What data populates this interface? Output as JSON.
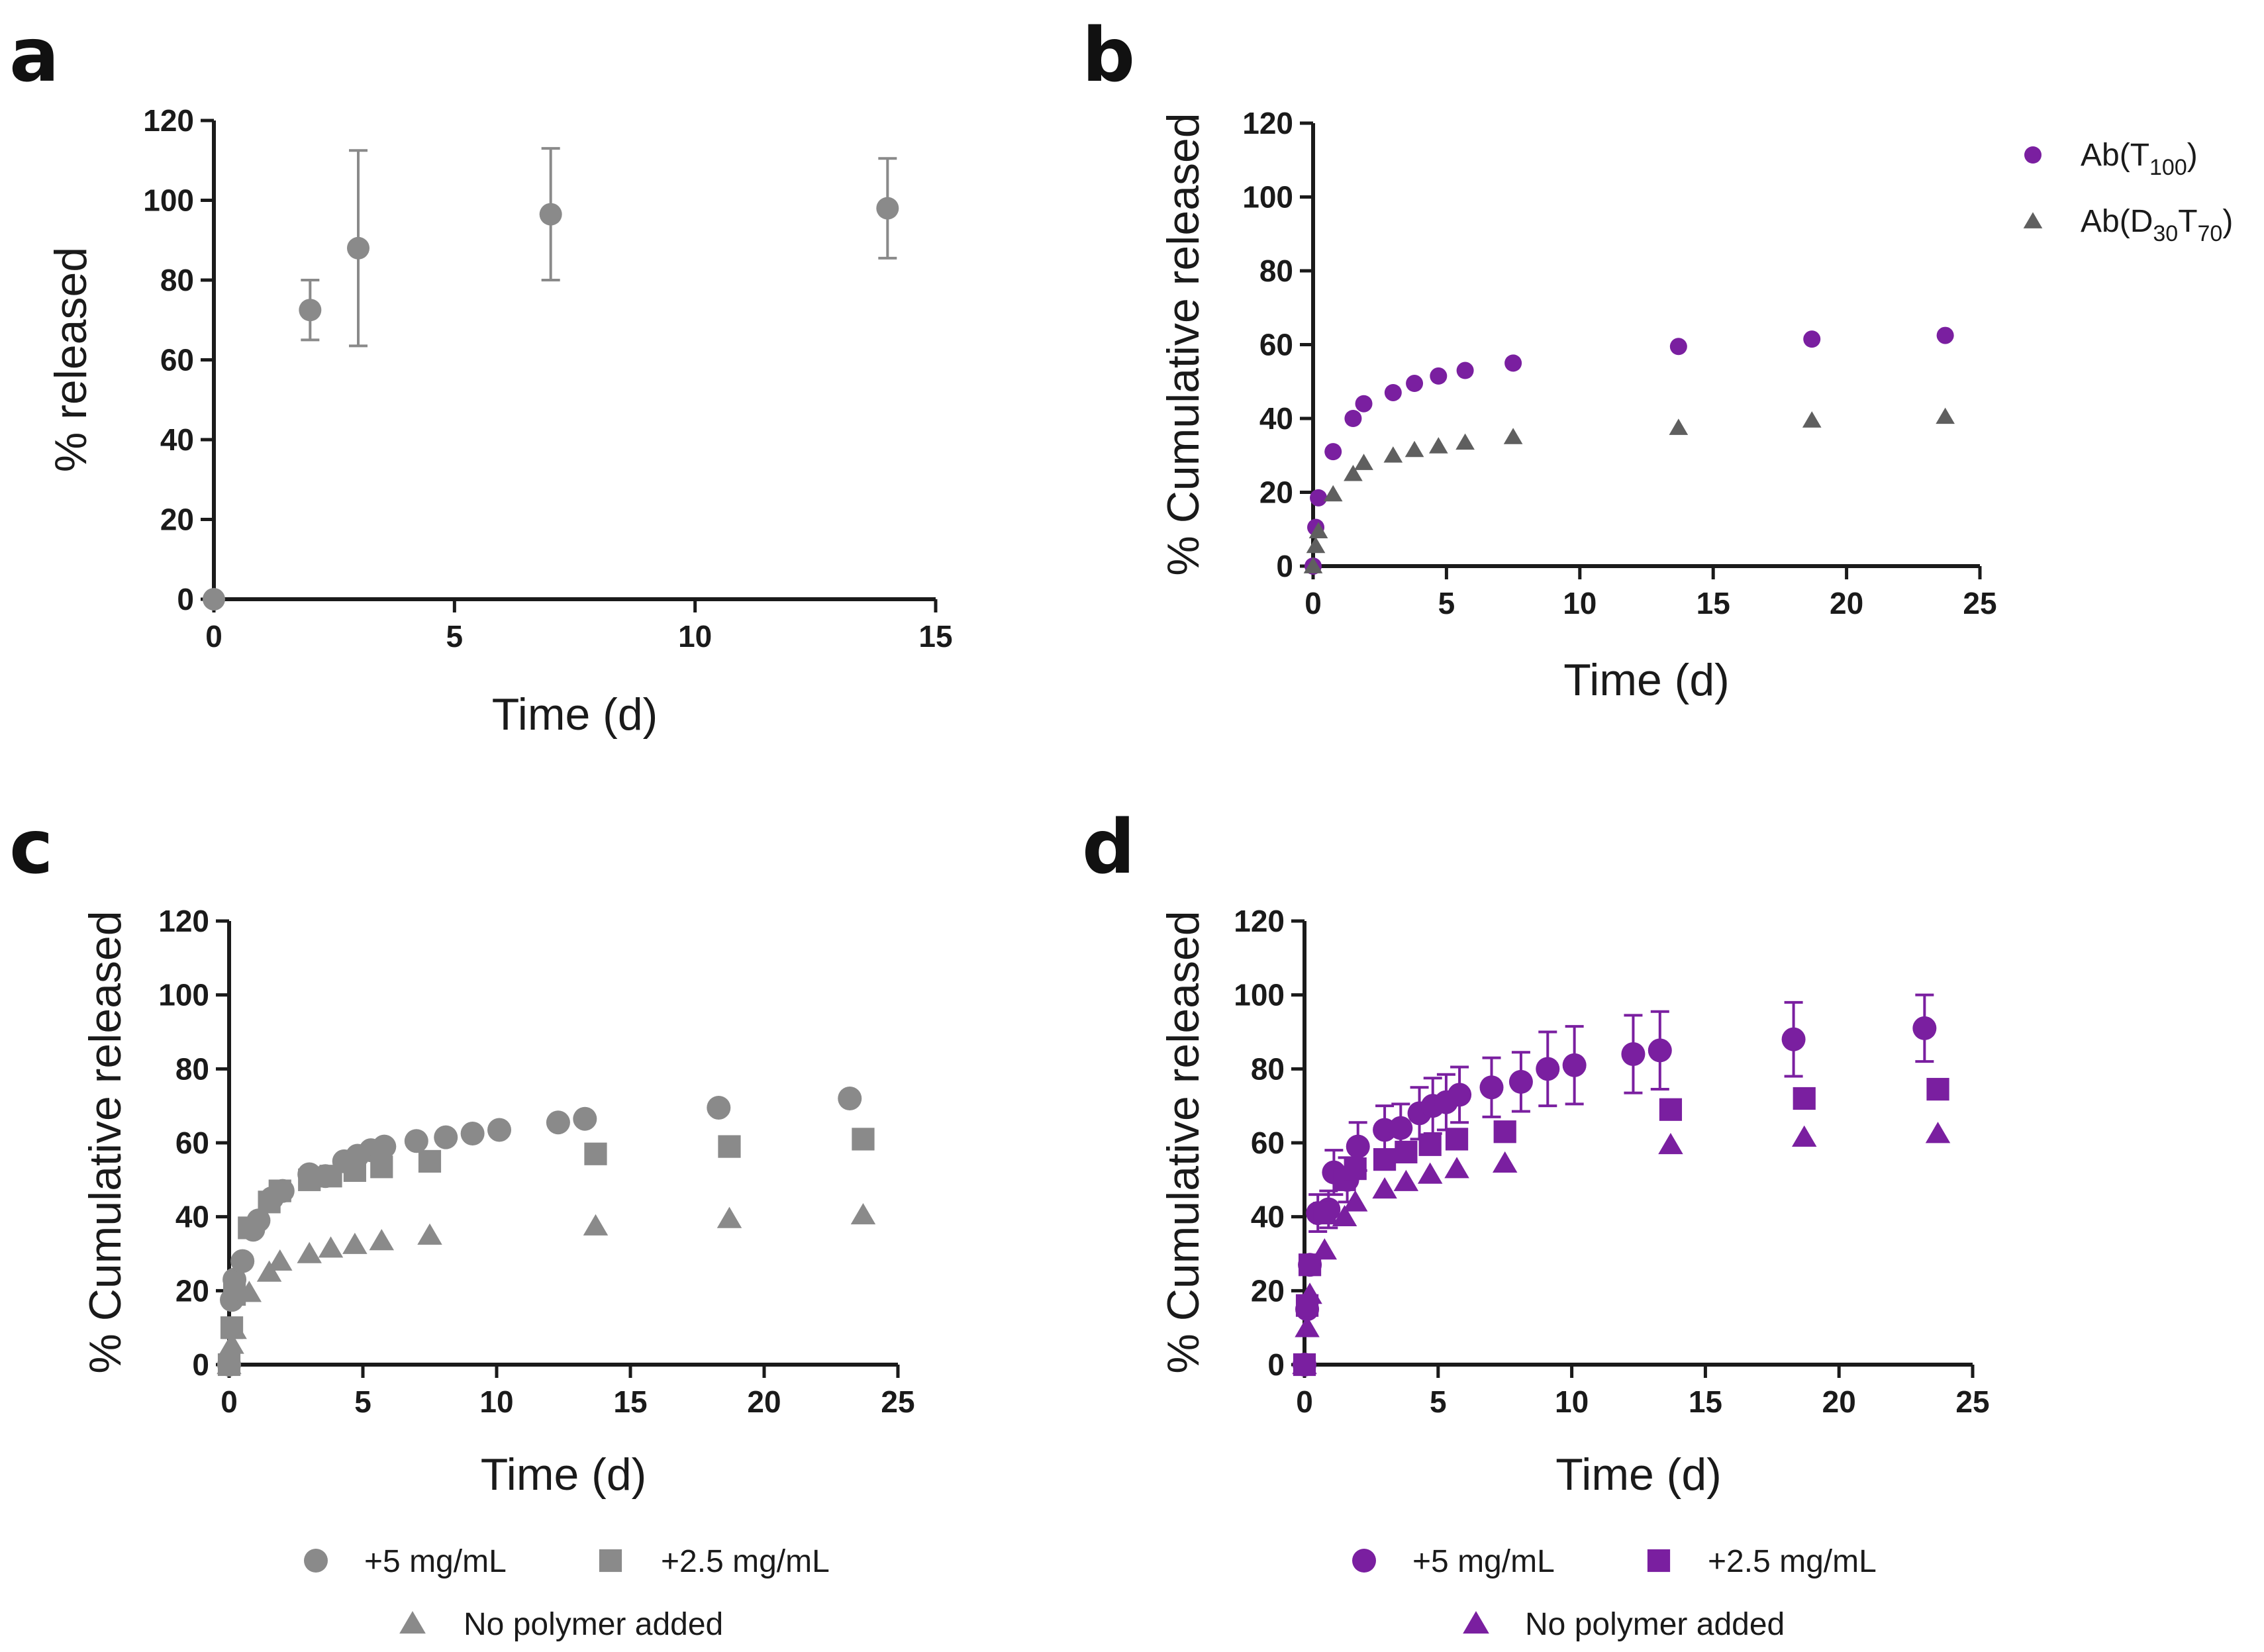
{
  "colors": {
    "gray": "#8a8a8a",
    "dark_gray": "#5f5f5f",
    "purple": "#7a1fa0"
  },
  "chart_data": [
    {
      "panel": "a",
      "type": "scatter",
      "xlabel": "Time (d)",
      "ylabel": "% released",
      "xlim": [
        0,
        15
      ],
      "ylim": [
        0,
        120
      ],
      "xticks": [
        0,
        5,
        10,
        15
      ],
      "yticks": [
        0,
        20,
        40,
        60,
        80,
        100,
        120
      ],
      "legend": "none",
      "series": [
        {
          "name": "released",
          "marker": "circle",
          "color": "#8a8a8a",
          "x": [
            0,
            2,
            3,
            7,
            14
          ],
          "y": [
            0,
            72.5,
            88,
            96.5,
            98
          ],
          "err": [
            0,
            7.5,
            24.5,
            16.5,
            12.5
          ]
        }
      ]
    },
    {
      "panel": "b",
      "type": "scatter",
      "xlabel": "Time (d)",
      "ylabel": "% Cumulative released",
      "xlim": [
        0,
        25
      ],
      "ylim": [
        0,
        120
      ],
      "xticks": [
        0,
        5,
        10,
        15,
        20,
        25
      ],
      "yticks": [
        0,
        20,
        40,
        60,
        80,
        100,
        120
      ],
      "legend": "top-right outside",
      "series": [
        {
          "name": "Ab(T100)",
          "label_base": "Ab(T",
          "label_sub": "100",
          "label_end": ")",
          "marker": "circle",
          "color": "#7a1fa0",
          "x": [
            0,
            0.1,
            0.2,
            0.75,
            1.5,
            1.9,
            3,
            3.8,
            4.7,
            5.7,
            7.5,
            13.7,
            18.7,
            23.7
          ],
          "y": [
            0,
            10.5,
            18.5,
            31,
            40,
            44,
            47,
            49.5,
            51.5,
            53,
            55,
            59.5,
            61.5,
            62.5
          ]
        },
        {
          "name": "Ab(D30T70)",
          "label_base": "Ab(D",
          "label_sub": "30",
          "label_mid": "T",
          "label_sub2": "70",
          "label_end": ")",
          "marker": "triangle",
          "color": "#5f5f5f",
          "x": [
            0,
            0.1,
            0.2,
            0.75,
            1.5,
            1.9,
            3,
            3.8,
            4.7,
            5.7,
            7.5,
            13.7,
            18.7,
            23.7
          ],
          "y": [
            0,
            5.5,
            9.5,
            19.5,
            25,
            28,
            30,
            31.5,
            32.5,
            33.5,
            35,
            37.5,
            39.5,
            40.5
          ]
        }
      ]
    },
    {
      "panel": "c",
      "type": "scatter",
      "xlabel": "Time (d)",
      "ylabel": "% Cumulative released",
      "xlim": [
        0,
        25
      ],
      "ylim": [
        0,
        120
      ],
      "xticks": [
        0,
        5,
        10,
        15,
        20,
        25
      ],
      "yticks": [
        0,
        20,
        40,
        60,
        80,
        100,
        120
      ],
      "legend": "bottom",
      "series": [
        {
          "name": "+5 mg/mL",
          "marker": "circle",
          "color": "#8a8a8a",
          "x": [
            0,
            0.1,
            0.2,
            0.5,
            0.9,
            1.1,
            1.6,
            2,
            3,
            3.6,
            4.3,
            4.8,
            5.3,
            5.8,
            7,
            8.1,
            9.1,
            10.1,
            12.3,
            13.3,
            18.3,
            23.2
          ],
          "y": [
            0,
            17.5,
            23,
            28,
            36.5,
            39,
            45,
            47,
            51.5,
            51,
            55,
            56.5,
            58,
            59,
            60.5,
            61.5,
            62.5,
            63.5,
            65.5,
            66.5,
            69.5,
            72
          ]
        },
        {
          "name": "+2.5 mg/mL",
          "marker": "square",
          "color": "#8a8a8a",
          "x": [
            0,
            0.1,
            0.2,
            0.75,
            1.5,
            1.9,
            3,
            3.8,
            4.7,
            5.7,
            7.5,
            13.7,
            18.7,
            23.7
          ],
          "y": [
            0,
            10,
            19,
            37,
            44,
            47,
            50,
            51,
            52.5,
            53.5,
            55,
            57,
            59,
            61
          ]
        },
        {
          "name": "No polymer added",
          "marker": "triangle",
          "color": "#8a8a8a",
          "x": [
            0,
            0.1,
            0.2,
            0.75,
            1.5,
            1.9,
            3,
            3.8,
            4.7,
            5.7,
            7.5,
            13.7,
            18.7,
            23.7
          ],
          "y": [
            0,
            5.5,
            9.5,
            19.5,
            25,
            28,
            30,
            31.5,
            32.5,
            33.5,
            35,
            37.5,
            39.5,
            40.5
          ]
        }
      ]
    },
    {
      "panel": "d",
      "type": "scatter",
      "xlabel": "Time (d)",
      "ylabel": "% Cumulative released",
      "xlim": [
        0,
        25
      ],
      "ylim": [
        0,
        120
      ],
      "xticks": [
        0,
        5,
        10,
        15,
        20,
        25
      ],
      "yticks": [
        0,
        20,
        40,
        60,
        80,
        100,
        120
      ],
      "legend": "bottom",
      "series": [
        {
          "name": "+5 mg/mL",
          "marker": "circle",
          "color": "#7a1fa0",
          "x": [
            0,
            0.1,
            0.2,
            0.5,
            0.9,
            1.1,
            1.6,
            2,
            3,
            3.6,
            4.3,
            4.8,
            5.3,
            5.8,
            7,
            8.1,
            9.1,
            10.1,
            12.3,
            13.3,
            18.3,
            23.2
          ],
          "y": [
            0,
            15,
            27,
            41,
            42,
            52,
            50,
            59,
            63.5,
            64,
            68,
            70,
            71,
            73,
            75,
            76.5,
            80,
            81,
            84,
            85,
            88,
            91
          ],
          "err": [
            0,
            0,
            0,
            5,
            5,
            6,
            6,
            6.5,
            6.5,
            6.5,
            7,
            7.5,
            7.5,
            7.5,
            8,
            8,
            10,
            10.5,
            10.5,
            10.5,
            10,
            9
          ]
        },
        {
          "name": "+2.5 mg/mL",
          "marker": "square",
          "color": "#7a1fa0",
          "x": [
            0,
            0.1,
            0.2,
            0.75,
            1.5,
            1.9,
            3,
            3.8,
            4.7,
            5.7,
            7.5,
            13.7,
            18.7,
            23.7
          ],
          "y": [
            0,
            16,
            27,
            41,
            50,
            53,
            55.5,
            57.5,
            59.5,
            61,
            63,
            69,
            72,
            74.5
          ]
        },
        {
          "name": "No polymer added",
          "marker": "triangle",
          "color": "#7a1fa0",
          "x": [
            0,
            0.1,
            0.2,
            0.75,
            1.5,
            1.9,
            3,
            3.8,
            4.7,
            5.7,
            7.5,
            13.7,
            18.7,
            23.7
          ],
          "y": [
            0,
            10,
            19,
            31,
            40,
            44,
            47.5,
            49.5,
            51.5,
            53,
            54.5,
            59.5,
            61.5,
            62.5
          ]
        }
      ]
    }
  ]
}
